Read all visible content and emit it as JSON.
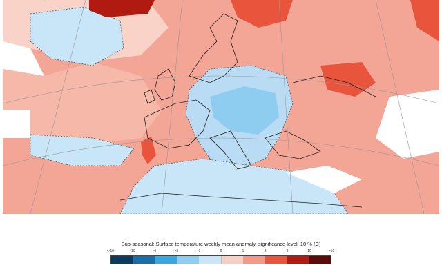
{
  "legend": {
    "title": "Sub-seasonal: Surface temperature weekly mean anomaly, significance level: 10 % (C)",
    "ticks": [
      "<-10",
      "-10",
      "-6",
      "-3",
      "-1",
      "0",
      "1",
      "3",
      "6",
      "10",
      ">10"
    ],
    "colors": [
      "#0a3a5e",
      "#1a6faa",
      "#3aa8e0",
      "#8fcdf0",
      "#c8e6f7",
      "#ffffff",
      "#f8cfc4",
      "#f29a88",
      "#e8553c",
      "#b01a10",
      "#5e0a08"
    ]
  },
  "map": {
    "ocean_color": "#f2a08c",
    "cool_anomaly_color": "#b9dcf4",
    "warm_anomaly_color": "#f3a596",
    "strong_warm_color": "#e8553c"
  }
}
